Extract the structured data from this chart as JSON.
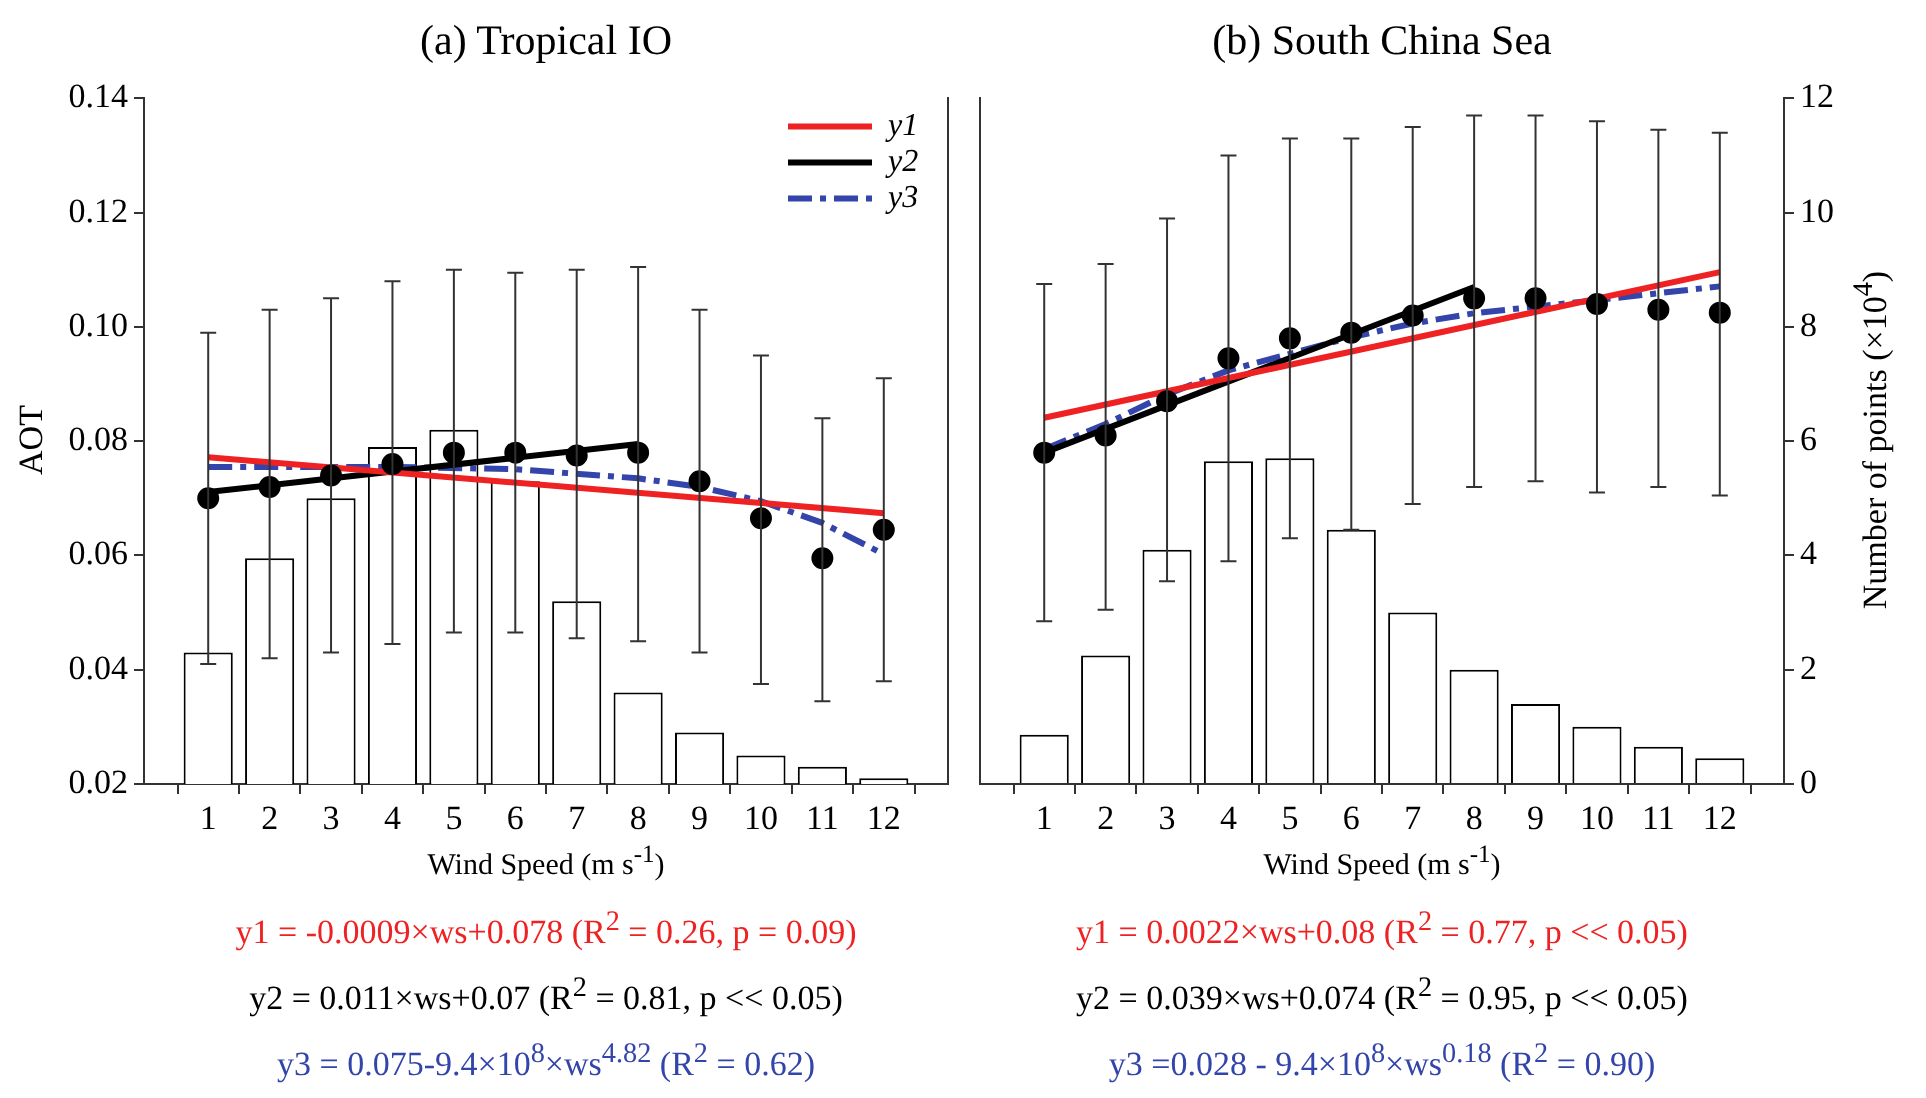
{
  "chart_data": [
    {
      "type": "line",
      "title": "(a) Tropical IO",
      "xlabel": "Wind Speed (m s$^{-1}$)",
      "ylabel": "AOT",
      "xlim": [
        0.5,
        12.5
      ],
      "xticks": [
        1,
        2,
        3,
        4,
        5,
        6,
        7,
        8,
        9,
        10,
        11,
        12
      ],
      "ylim": [
        0.02,
        0.14
      ],
      "yticks": [
        0.02,
        0.04,
        0.06,
        0.08,
        {
          "value": 0.1,
          "label": "0.10"
        },
        0.12,
        0.14
      ],
      "y2lim": [
        0,
        12
      ],
      "tick_labels": [
        "x",
        "y"
      ],
      "grid": false,
      "legend": "top right",
      "line_style": "solid",
      "series": [
        {
          "type": "bar",
          "axis": "y2",
          "color": "#ffffff",
          "x": [
            1,
            2,
            3,
            4,
            5,
            6,
            7,
            8,
            9,
            10,
            11,
            12
          ],
          "values": [
            2.3,
            3.95,
            5.0,
            5.9,
            6.2,
            5.3,
            3.2,
            1.6,
            0.9,
            0.5,
            0.3,
            0.1
          ]
        },
        {
          "type": "scatter",
          "marker": "circle",
          "color": "#000000",
          "x": [
            1,
            2,
            3,
            4,
            5,
            6,
            7,
            8,
            9,
            10,
            11,
            12
          ],
          "values": [
            0.07,
            0.072,
            0.074,
            0.076,
            0.078,
            0.078,
            0.0775,
            0.078,
            0.073,
            0.0665,
            0.0595,
            0.0645
          ],
          "errors": [
            [
              0.041,
              0.099
            ],
            [
              0.042,
              0.103
            ],
            [
              0.043,
              0.105
            ],
            [
              0.0445,
              0.108
            ],
            [
              0.0465,
              0.11
            ],
            [
              0.0465,
              0.1095
            ],
            [
              0.0455,
              0.11
            ],
            [
              0.045,
              0.1105
            ],
            [
              0.043,
              0.103
            ],
            [
              0.0375,
              0.095
            ],
            [
              0.0345,
              0.084
            ],
            [
              0.038,
              0.091
            ]
          ]
        },
        {
          "name": "y1",
          "color": "#ee2222",
          "x": [
            1,
            12
          ],
          "values": [
            0.0772,
            0.0674
          ]
        },
        {
          "name": "y2",
          "color": "#000000",
          "x": [
            1,
            8
          ],
          "values": [
            0.0711,
            0.0795
          ]
        },
        {
          "name": "y3",
          "color": "#3344aa",
          "line_style": "dashed",
          "x": [
            1,
            4,
            6,
            8,
            9,
            10,
            11,
            12
          ],
          "values": [
            0.0755,
            0.0755,
            0.0751,
            0.0735,
            0.072,
            0.0695,
            0.0657,
            0.0602
          ]
        }
      ],
      "annotations": [
        "y1 = -0.0009×ws+0.078 (R$^{2}$ = 0.26, p = 0.09)",
        "y2 = 0.011×ws+0.07 (R$^{2}$ = 0.81, p << 0.05)",
        "y3 = 0.075-9.4×10$^{8}$×ws$^{4.82}$ (R$^{2}$ = 0.62)"
      ]
    },
    {
      "type": "line",
      "title": "(b) South China Sea",
      "xlabel": "Wind Speed (m s$^{-1}$)",
      "y2label": "Number of points (×10$^{4}$)",
      "xlim": [
        0.5,
        12.5
      ],
      "xticks": [
        1,
        2,
        3,
        4,
        5,
        6,
        7,
        8,
        9,
        10,
        11,
        12
      ],
      "ylim": [
        0.02,
        0.14
      ],
      "y2lim": [
        0,
        12
      ],
      "y2ticks": [
        0,
        2,
        4,
        6,
        8,
        10,
        12
      ],
      "tick_labels": [
        "x",
        "y2"
      ],
      "grid": false,
      "line_style": "solid",
      "series": [
        {
          "type": "bar",
          "axis": "y2",
          "color": "#ffffff",
          "x": [
            1,
            2,
            3,
            4,
            5,
            6,
            7,
            8,
            9,
            10,
            11,
            12
          ],
          "values": [
            0.86,
            2.25,
            4.1,
            5.65,
            5.7,
            4.45,
            3.0,
            2.0,
            1.4,
            1.0,
            0.65,
            0.45
          ]
        },
        {
          "type": "scatter",
          "marker": "circle",
          "color": "#000000",
          "x": [
            1,
            2,
            3,
            4,
            5,
            6,
            7,
            8,
            9,
            10,
            11,
            12
          ],
          "values": [
            0.078,
            0.081,
            0.087,
            0.0945,
            0.098,
            0.099,
            0.102,
            0.105,
            0.105,
            0.104,
            0.103,
            0.1025
          ],
          "errors": [
            [
              0.0485,
              0.1075
            ],
            [
              0.0505,
              0.111
            ],
            [
              0.0555,
              0.119
            ],
            [
              0.059,
              0.13
            ],
            [
              0.063,
              0.133
            ],
            [
              0.0645,
              0.133
            ],
            [
              0.069,
              0.135
            ],
            [
              0.072,
              0.137
            ],
            [
              0.073,
              0.137
            ],
            [
              0.071,
              0.136
            ],
            [
              0.072,
              0.1345
            ],
            [
              0.0705,
              0.134
            ]
          ]
        },
        {
          "color": "#ee2222",
          "x": [
            1,
            12
          ],
          "values": [
            0.0841,
            0.1096
          ]
        },
        {
          "color": "#000000",
          "x": [
            1,
            8
          ],
          "values": [
            0.078,
            0.107
          ]
        },
        {
          "color": "#3344aa",
          "line_style": "dashed",
          "x": [
            1,
            2,
            3,
            4,
            5,
            6,
            7,
            8,
            10,
            12
          ],
          "values": [
            0.0786,
            0.083,
            0.0882,
            0.0924,
            0.0953,
            0.0982,
            0.1006,
            0.1024,
            0.1047,
            0.1071
          ]
        }
      ],
      "annotations": [
        "y1 = 0.0022×ws+0.08 (R$^{2}$ = 0.77, p << 0.05)",
        "y2 = 0.039×ws+0.074 (R$^{2}$ = 0.95, p << 0.05)",
        "y3 =0.028 - 9.4×10$^{8}$×ws$^{0.18}$ (R$^{2}$ = 0.90)"
      ]
    }
  ]
}
